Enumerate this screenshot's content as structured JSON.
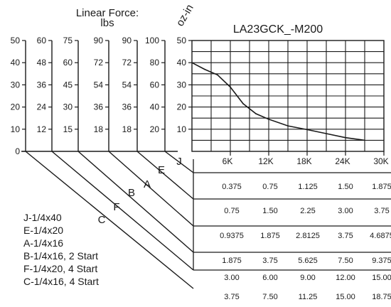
{
  "chart_data": {
    "type": "line",
    "title": "LA23GCK_-M200",
    "force_axis_title_line1": "Linear Force:",
    "force_axis_title_line2": "lbs",
    "torque_unit": "oz-in",
    "torque_ticks": [
      "0",
      "10",
      "20",
      "30",
      "40",
      "50"
    ],
    "force_scales": [
      {
        "leadscrew": "J",
        "ticks": [
          "0",
          "10",
          "20",
          "30",
          "40",
          "50"
        ]
      },
      {
        "leadscrew": "E",
        "ticks": [
          "12",
          "24",
          "36",
          "48",
          "60"
        ]
      },
      {
        "leadscrew": "A",
        "ticks": [
          "15",
          "30",
          "45",
          "60",
          "75"
        ]
      },
      {
        "leadscrew": "B",
        "ticks": [
          "18",
          "36",
          "54",
          "72",
          "90"
        ]
      },
      {
        "leadscrew": "F",
        "ticks": [
          "18",
          "36",
          "54",
          "72",
          "90"
        ]
      },
      {
        "leadscrew": "C",
        "ticks": [
          "20",
          "40",
          "60",
          "80",
          "100"
        ]
      }
    ],
    "x_ticks": [
      "6K",
      "12K",
      "18K",
      "24K",
      "30K"
    ],
    "xlim": [
      0,
      30000
    ],
    "ylim": [
      0,
      50
    ],
    "grid": true,
    "series": [
      {
        "x": [
          0,
          2000,
          4000,
          6000,
          8000,
          10000,
          12000,
          15000,
          18000,
          21000,
          24000,
          27000
        ],
        "y": [
          40,
          37,
          34.5,
          29,
          21.5,
          17,
          14.5,
          11.5,
          9.8,
          8,
          6.2,
          5
        ]
      }
    ],
    "leadscrew_letters": [
      "J",
      "E",
      "A",
      "B",
      "F",
      "C"
    ],
    "speed_table": [
      [
        "0.375",
        "0.75",
        "1.125",
        "1.50",
        "1.875"
      ],
      [
        "0.75",
        "1.50",
        "2.25",
        "3.00",
        "3.75"
      ],
      [
        "0.9375",
        "1.875",
        "2.8125",
        "3.75",
        "4.6875"
      ],
      [
        "1.875",
        "3.75",
        "5.625",
        "7.50",
        "9.375"
      ],
      [
        "3.00",
        "6.00",
        "9.00",
        "12.00",
        "15.00"
      ],
      [
        "3.75",
        "7.50",
        "11.25",
        "15.00",
        "18.75"
      ]
    ],
    "legend": [
      "J-1/4x40",
      "E-1/4x20",
      "A-1/4x16",
      "B-1/4x16, 2 Start",
      "F-1/4x20, 4 Start",
      "C-1/4x16, 4 Start"
    ]
  }
}
